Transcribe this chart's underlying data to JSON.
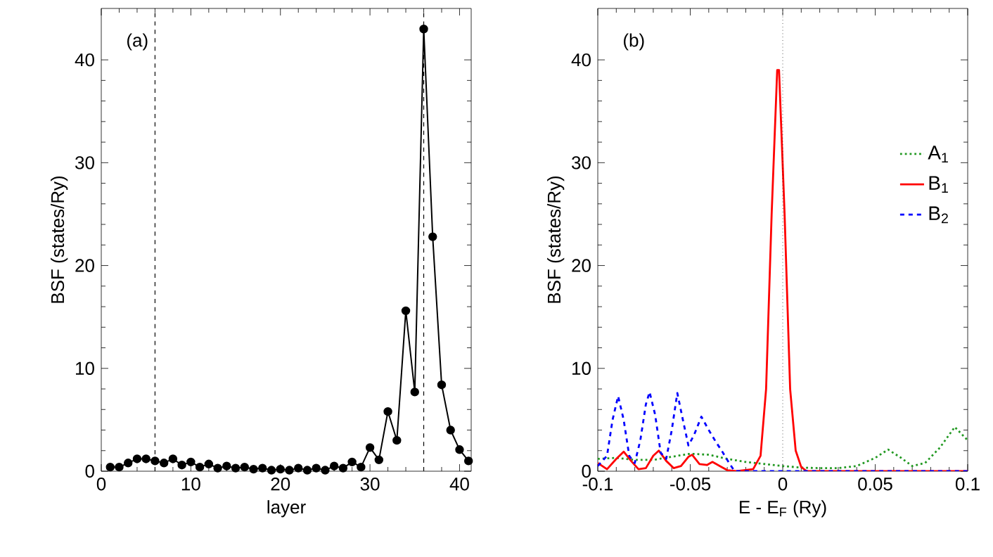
{
  "chart_data": [
    {
      "type": "line",
      "xlabel": "layer",
      "ylabel": "BSF  (states/Ry)",
      "annotations": [
        "(a)"
      ],
      "marker": "circle",
      "line_style": "solid",
      "legend": false,
      "xlim": [
        0,
        41.3
      ],
      "ylim": [
        0,
        45
      ],
      "xticks": [
        0,
        10,
        20,
        30,
        40
      ],
      "yticks": [
        0,
        10,
        20,
        30,
        40
      ],
      "x": [
        1,
        2,
        3,
        4,
        5,
        6,
        7,
        8,
        9,
        10,
        11,
        12,
        13,
        14,
        15,
        16,
        17,
        18,
        19,
        20,
        21,
        22,
        23,
        24,
        25,
        26,
        27,
        28,
        29,
        30,
        31,
        32,
        33,
        34,
        35,
        36,
        37,
        38,
        39,
        40,
        41
      ],
      "series": [
        {
          "color": "#000000",
          "values": [
            0.4,
            0.4,
            0.8,
            1.2,
            1.2,
            1.0,
            0.8,
            1.2,
            0.6,
            0.9,
            0.4,
            0.7,
            0.3,
            0.5,
            0.3,
            0.4,
            0.2,
            0.3,
            0.1,
            0.2,
            0.1,
            0.3,
            0.1,
            0.3,
            0.1,
            0.5,
            0.3,
            0.9,
            0.4,
            2.3,
            1.1,
            5.8,
            3.0,
            15.6,
            7.7,
            43.0,
            22.8,
            8.4,
            4.0,
            2.1,
            1.0
          ]
        }
      ],
      "ref_lines": [
        {
          "axis": "x",
          "value": 6,
          "line_style": "dashed",
          "color": "#000000"
        },
        {
          "axis": "x",
          "value": 36,
          "line_style": "dashed",
          "color": "#000000"
        }
      ]
    },
    {
      "type": "line",
      "xlabel": "E - E$_{F}$  (Ry)",
      "ylabel": "BSF  (states/Ry)",
      "annotations": [
        "(b)"
      ],
      "marker": "none",
      "legend": "right",
      "xlim": [
        -0.1,
        0.1
      ],
      "ylim": [
        0,
        45
      ],
      "xticks": [
        -0.1,
        -0.05,
        0,
        0.05,
        0.1
      ],
      "yticks": [
        0,
        10,
        20,
        30,
        40
      ],
      "series": [
        {
          "name": "A$_{1}$",
          "color": "#229922",
          "line_style": "dotted",
          "x": [
            -0.1,
            -0.09,
            -0.08,
            -0.07,
            -0.06,
            -0.05,
            -0.04,
            -0.03,
            -0.02,
            -0.01,
            0,
            0.01,
            0.02,
            0.03,
            0.04,
            0.05,
            0.057,
            0.064,
            0.07,
            0.077,
            0.085,
            0.093,
            0.1
          ],
          "values": [
            1.2,
            1.3,
            1.1,
            1.1,
            1.4,
            1.7,
            1.6,
            1.2,
            0.9,
            0.7,
            0.5,
            0.35,
            0.3,
            0.3,
            0.5,
            1.3,
            2.1,
            1.3,
            0.5,
            0.8,
            2.3,
            4.3,
            3.0
          ]
        },
        {
          "name": "B$_{1}$",
          "color": "#ff0000",
          "line_style": "solid",
          "x": [
            -0.1,
            -0.095,
            -0.09,
            -0.086,
            -0.082,
            -0.078,
            -0.074,
            -0.07,
            -0.067,
            -0.063,
            -0.059,
            -0.055,
            -0.051,
            -0.049,
            -0.045,
            -0.041,
            -0.038,
            -0.034,
            -0.03,
            -0.025,
            -0.016,
            -0.012,
            -0.009,
            -0.006,
            -0.003,
            -0.002,
            0.001,
            0.004,
            0.007,
            0.01,
            0.013,
            0.1
          ],
          "values": [
            0.8,
            0.2,
            1.2,
            1.9,
            1.0,
            0.2,
            0.3,
            1.5,
            2.0,
            1.0,
            0.3,
            0.5,
            1.4,
            1.6,
            0.7,
            0.6,
            0.9,
            0.5,
            0.1,
            0,
            0.2,
            1.5,
            8,
            25,
            39,
            39,
            25,
            8,
            2,
            0.4,
            0,
            0
          ]
        },
        {
          "name": "B$_{2}$",
          "color": "#0000ff",
          "line_style": "dashed",
          "x": [
            -0.1,
            -0.095,
            -0.092,
            -0.089,
            -0.086,
            -0.083,
            -0.08,
            -0.077,
            -0.074,
            -0.072,
            -0.069,
            -0.066,
            -0.063,
            -0.06,
            -0.057,
            -0.054,
            -0.051,
            -0.048,
            -0.044,
            -0.04,
            -0.036,
            -0.033,
            -0.029,
            -0.026,
            0.1
          ],
          "values": [
            0.5,
            1.5,
            5,
            7.3,
            5,
            1.5,
            0.8,
            3,
            6.5,
            7.7,
            5.5,
            1.8,
            1.2,
            4,
            7.6,
            5,
            2.5,
            3.5,
            5.3,
            4,
            2.8,
            2,
            0.8,
            0,
            0
          ]
        }
      ],
      "ref_lines": [
        {
          "axis": "x",
          "value": 0,
          "line_style": "dotted",
          "color": "#000000"
        }
      ]
    }
  ]
}
